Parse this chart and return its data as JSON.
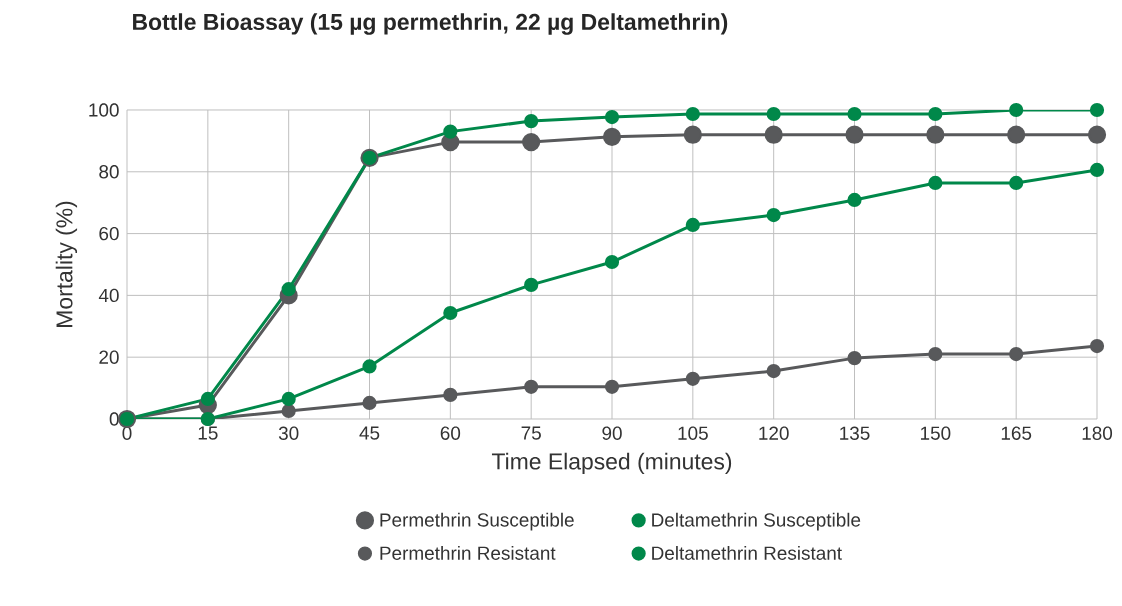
{
  "chart_data": {
    "type": "line",
    "title": "Bottle Bioassay (15 µg permethrin, 22 µg Deltamethrin)",
    "xlabel": "Time Elapsed (minutes)",
    "ylabel": "Mortality (%)",
    "x": [
      0,
      15,
      30,
      45,
      60,
      75,
      90,
      105,
      120,
      135,
      150,
      165,
      180
    ],
    "series": [
      {
        "name": "Permethrin Susceptible",
        "color": "#58595b",
        "values": [
          0,
          4.5,
          40,
          84.5,
          89.6,
          89.6,
          91.3,
          92,
          92,
          92,
          92,
          92,
          92
        ]
      },
      {
        "name": "Deltamethrin Susceptible",
        "color": "#00884a",
        "values": [
          0,
          6.5,
          42,
          84.5,
          93,
          96.4,
          97.7,
          98.7,
          98.7,
          98.7,
          98.7,
          100,
          100
        ]
      },
      {
        "name": "Permethrin Resistant",
        "color": "#58595b",
        "values": [
          0,
          0,
          2.6,
          5.2,
          7.8,
          10.4,
          10.4,
          13,
          15.5,
          19.7,
          21,
          21,
          23.6
        ]
      },
      {
        "name": "Deltamethrin Resistant",
        "color": "#00884a",
        "values": [
          0,
          0,
          6.5,
          17,
          34.3,
          43.4,
          50.8,
          62.8,
          66,
          70.9,
          76.4,
          76.4,
          80.6
        ]
      }
    ],
    "xlim": [
      0,
      180
    ],
    "xticks": [
      0,
      15,
      30,
      45,
      60,
      75,
      90,
      105,
      120,
      135,
      150,
      165,
      180
    ],
    "ylim": [
      0,
      100
    ],
    "yticks": [
      0,
      20,
      40,
      60,
      80,
      100
    ],
    "grid": true,
    "legend": "bottom",
    "marker": "circle",
    "line_style": "solid"
  }
}
